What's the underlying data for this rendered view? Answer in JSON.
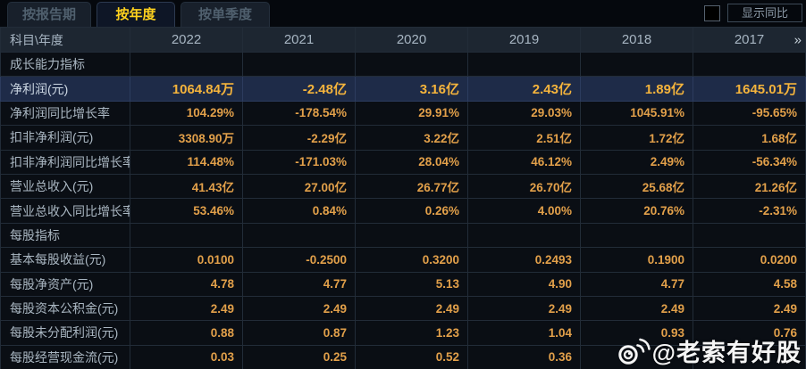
{
  "tabs": [
    {
      "label": "按报告期",
      "active": false
    },
    {
      "label": "按年度",
      "active": true
    },
    {
      "label": "按单季度",
      "active": false
    }
  ],
  "controls": {
    "show_yoy_label": "显示同比",
    "checkbox_checked": false
  },
  "table": {
    "corner_header": "科目\\年度",
    "years": [
      "2022",
      "2021",
      "2020",
      "2019",
      "2018",
      "2017"
    ],
    "more_indicator": "»",
    "rows": [
      {
        "type": "section",
        "label": "成长能力指标",
        "values": [
          "",
          "",
          "",
          "",
          "",
          ""
        ]
      },
      {
        "type": "highlight",
        "label": "净利润(元)",
        "values": [
          "1064.84万",
          "-2.48亿",
          "3.16亿",
          "2.43亿",
          "1.89亿",
          "1645.01万"
        ]
      },
      {
        "type": "data",
        "label": "净利润同比增长率",
        "values": [
          "104.29%",
          "-178.54%",
          "29.91%",
          "29.03%",
          "1045.91%",
          "-95.65%"
        ]
      },
      {
        "type": "data",
        "label": "扣非净利润(元)",
        "values": [
          "3308.90万",
          "-2.29亿",
          "3.22亿",
          "2.51亿",
          "1.72亿",
          "1.68亿"
        ]
      },
      {
        "type": "data",
        "label": "扣非净利润同比增长率",
        "values": [
          "114.48%",
          "-171.03%",
          "28.04%",
          "46.12%",
          "2.49%",
          "-56.34%"
        ]
      },
      {
        "type": "data",
        "label": "营业总收入(元)",
        "values": [
          "41.43亿",
          "27.00亿",
          "26.77亿",
          "26.70亿",
          "25.68亿",
          "21.26亿"
        ]
      },
      {
        "type": "data",
        "label": "营业总收入同比增长率",
        "values": [
          "53.46%",
          "0.84%",
          "0.26%",
          "4.00%",
          "20.76%",
          "-2.31%"
        ]
      },
      {
        "type": "section",
        "label": "每股指标",
        "values": [
          "",
          "",
          "",
          "",
          "",
          ""
        ]
      },
      {
        "type": "data",
        "label": "基本每股收益(元)",
        "values": [
          "0.0100",
          "-0.2500",
          "0.3200",
          "0.2493",
          "0.1900",
          "0.0200"
        ]
      },
      {
        "type": "data",
        "label": "每股净资产(元)",
        "values": [
          "4.78",
          "4.77",
          "5.13",
          "4.90",
          "4.77",
          "4.58"
        ]
      },
      {
        "type": "data",
        "label": "每股资本公积金(元)",
        "values": [
          "2.49",
          "2.49",
          "2.49",
          "2.49",
          "2.49",
          "2.49"
        ]
      },
      {
        "type": "data",
        "label": "每股未分配利润(元)",
        "values": [
          "0.88",
          "0.87",
          "1.23",
          "1.04",
          "0.93",
          "0.76"
        ]
      },
      {
        "type": "data",
        "label": "每股经营现金流(元)",
        "values": [
          "0.03",
          "0.25",
          "0.52",
          "0.36",
          "",
          ""
        ]
      }
    ]
  },
  "watermark": {
    "text": "@老索有好股"
  },
  "colors": {
    "value_gold": "#e2a04a",
    "highlight_gold": "#f5b43c",
    "active_tab_yellow": "#ffd21e",
    "highlight_row_bg": "#1e2b48",
    "header_bg": "#1d2631",
    "body_bg": "#0a0e14"
  }
}
